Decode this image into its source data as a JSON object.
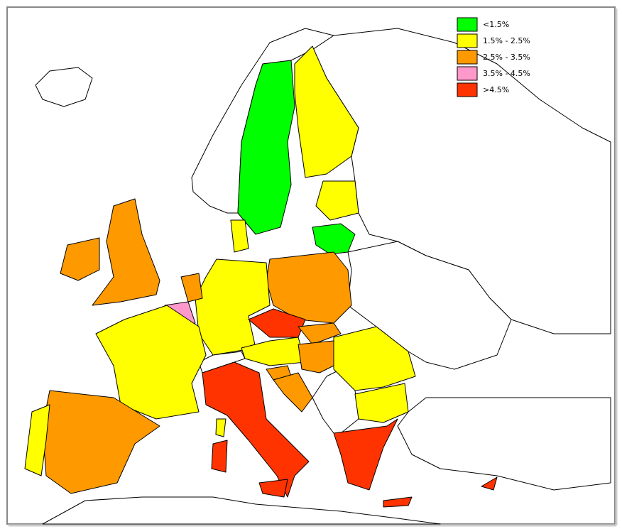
{
  "legend": {
    "items": [
      {
        "label": "<1.5%",
        "color": "#00ff00"
      },
      {
        "label": "1.5% - 2.5%",
        "color": "#ffff00"
      },
      {
        "label": "2.5% - 3.5%",
        "color": "#ff9900"
      },
      {
        "label": "3.5% - 4.5%",
        "color": "#ff99cc"
      },
      {
        "label": ">4.5%",
        "color": "#ff3300"
      }
    ]
  }
}
